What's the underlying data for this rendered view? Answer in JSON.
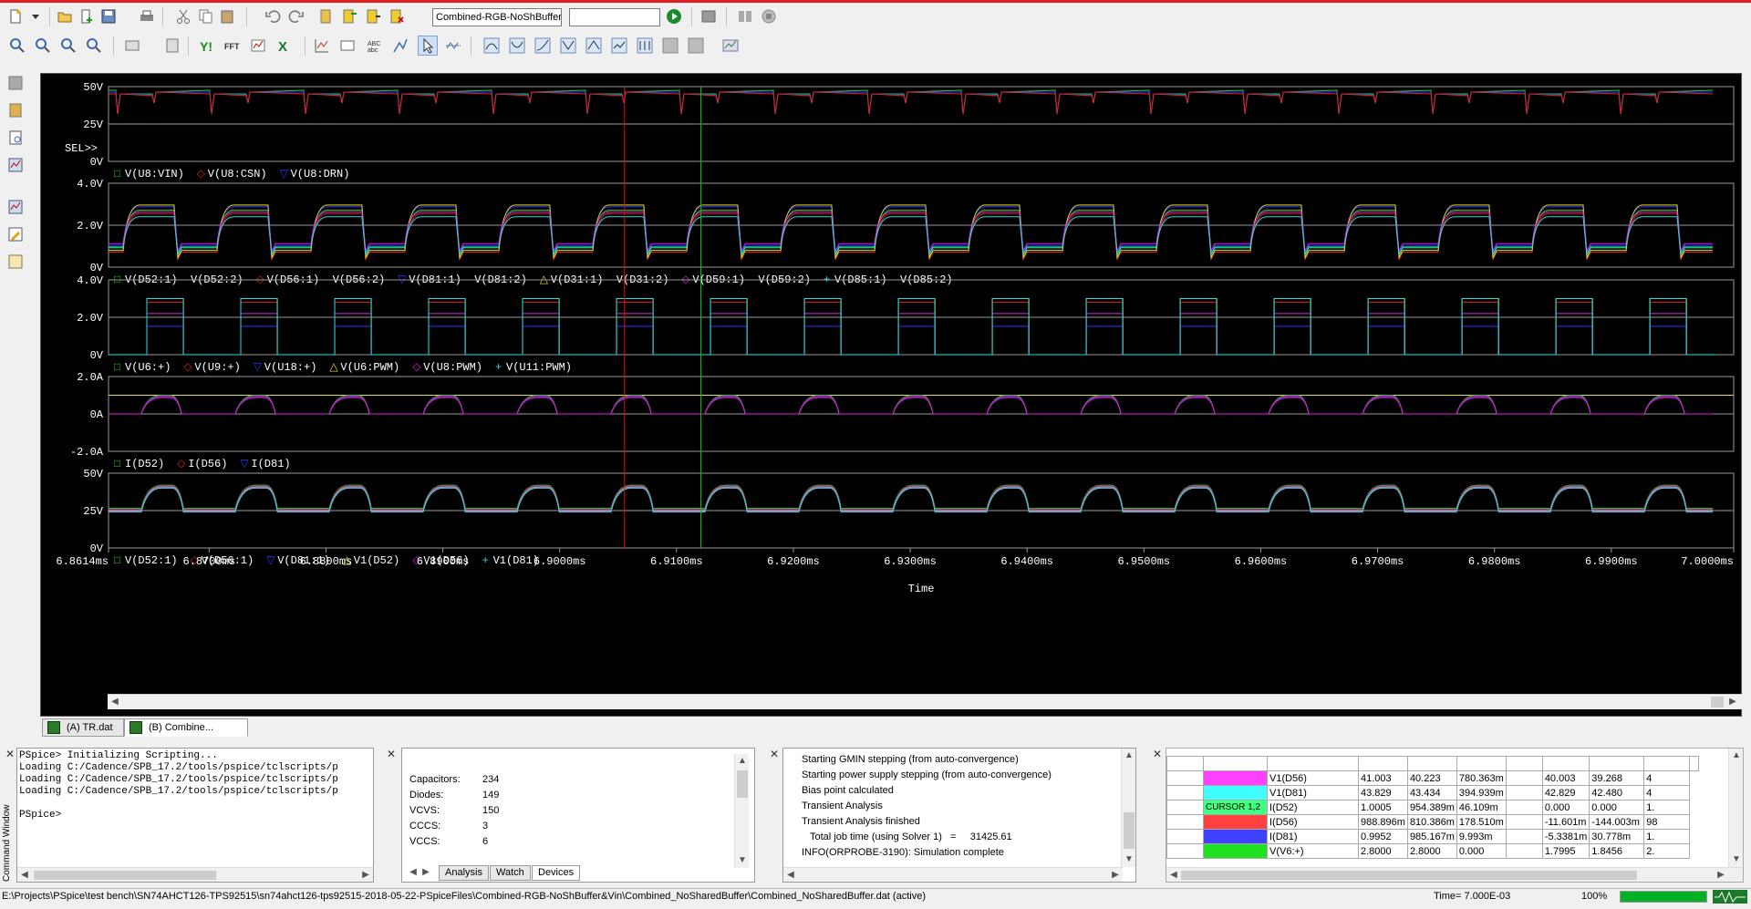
{
  "toolbar": {
    "profile_combo": "Combined-RGB-NoShBuffer",
    "search_combo": ""
  },
  "plot": {
    "background": "#000000",
    "cursor_colors": [
      "#e01010",
      "#10c010"
    ],
    "panels": [
      {
        "ylabels": [
          "50V",
          "25V",
          "0V"
        ],
        "sel": "SEL>>",
        "legend": [
          {
            "sym": "□",
            "color": "#20d020",
            "text": "V(U8:VIN)"
          },
          {
            "sym": "◇",
            "color": "#e02020",
            "text": "V(U8:CSN)"
          },
          {
            "sym": "▽",
            "color": "#3030ff",
            "text": "V(U8:DRN)"
          }
        ]
      },
      {
        "ylabels": [
          "4.0V",
          "2.0V",
          "0V"
        ],
        "legend": [
          {
            "sym": "□",
            "color": "#20d020",
            "text": "V(D52:1)- V(D52:2)"
          },
          {
            "sym": "◇",
            "color": "#e02020",
            "text": "V(D56:1)- V(D56:2)"
          },
          {
            "sym": "▽",
            "color": "#3030ff",
            "text": "V(D81:1)- V(D81:2)"
          },
          {
            "sym": "△",
            "color": "#e0e020",
            "text": "V(D31:1)- V(D31:2)"
          },
          {
            "sym": "◇",
            "color": "#e020e0",
            "text": "V(D59:1)- V(D59:2)"
          },
          {
            "sym": "+",
            "color": "#20e0e0",
            "text": "V(D85:1)- V(D85:2)"
          }
        ]
      },
      {
        "ylabels": [
          "4.0V",
          "2.0V",
          "0V"
        ],
        "legend": [
          {
            "sym": "□",
            "color": "#20d020",
            "text": "V(U6:+)"
          },
          {
            "sym": "◇",
            "color": "#e02020",
            "text": "V(U9:+)"
          },
          {
            "sym": "▽",
            "color": "#3030ff",
            "text": "V(U18:+)"
          },
          {
            "sym": "△",
            "color": "#e0e020",
            "text": "V(U6:PWM)"
          },
          {
            "sym": "◇",
            "color": "#e020e0",
            "text": "V(U8:PWM)"
          },
          {
            "sym": "+",
            "color": "#20e0e0",
            "text": "V(U11:PWM)"
          }
        ]
      },
      {
        "ylabels": [
          "2.0A",
          "0A",
          "-2.0A"
        ],
        "legend": [
          {
            "sym": "□",
            "color": "#20d020",
            "text": "I(D52)"
          },
          {
            "sym": "◇",
            "color": "#e02020",
            "text": "I(D56)"
          },
          {
            "sym": "▽",
            "color": "#3030ff",
            "text": "I(D81)"
          }
        ]
      },
      {
        "ylabels": [
          "50V",
          "25V",
          "0V"
        ],
        "legend": [
          {
            "sym": "□",
            "color": "#20d020",
            "text": "V(D52:1)"
          },
          {
            "sym": "◇",
            "color": "#e02020",
            "text": "V(D56:1)"
          },
          {
            "sym": "▽",
            "color": "#3030ff",
            "text": "V(D81:1)"
          },
          {
            "sym": "△",
            "color": "#e0e020",
            "text": "V1(D52)"
          },
          {
            "sym": "◇",
            "color": "#e020e0",
            "text": "V1(D56)"
          },
          {
            "sym": "+",
            "color": "#20e0e0",
            "text": "V1(D81)"
          }
        ]
      }
    ],
    "xticks": [
      "6.8614ms",
      "6.8700ms",
      "6.8800ms",
      "6.8900ms",
      "6.9000ms",
      "6.9100ms",
      "6.9200ms",
      "6.9300ms",
      "6.9400ms",
      "6.9500ms",
      "6.9600ms",
      "6.9700ms",
      "6.9800ms",
      "6.9900ms",
      "7.0000ms"
    ],
    "xlabel": "Time",
    "cursors": {
      "c1": "6.9064ms",
      "c2": "6.9142ms"
    }
  },
  "tabs": [
    {
      "label": "(A) TR.dat"
    },
    {
      "label": "(B) Combine..."
    }
  ],
  "command_window": {
    "title": "Command Window",
    "lines": [
      "PSpice> Initializing Scripting...",
      "Loading C:/Cadence/SPB_17.2/tools/pspice/tclscripts/p",
      "Loading C:/Cadence/SPB_17.2/tools/pspice/tclscripts/p",
      "Loading C:/Cadence/SPB_17.2/tools/pspice/tclscripts/p",
      "",
      "PSpice>"
    ]
  },
  "devices": {
    "rows": [
      {
        "k": "Capacitors:",
        "v": "234"
      },
      {
        "k": "Diodes:",
        "v": "149"
      },
      {
        "k": "VCVS:",
        "v": "150"
      },
      {
        "k": "CCCS:",
        "v": "3"
      },
      {
        "k": "VCCS:",
        "v": "6"
      }
    ],
    "subtabs": [
      "Analysis",
      "Watch",
      "Devices"
    ]
  },
  "messages": [
    "Starting GMIN stepping (from auto-convergence)",
    "Starting power supply stepping (from auto-convergence)",
    "Bias point calculated",
    "Transient Analysis",
    "Transient Analysis finished",
    "   Total job time (using Solver 1)   =     31425.61",
    "INFO(ORPROBE-3190): Simulation complete"
  ],
  "probe": {
    "rows": [
      {
        "color": "#ff40ff",
        "name": "V1(D56)",
        "c1": "41.003",
        "c2": "40.223",
        "dif": "780.363m",
        "mx": "",
        "a": "40.003",
        "b": "39.268",
        "c": "4"
      },
      {
        "color": "#40ffff",
        "name": "V1(D81)",
        "c1": "43.829",
        "c2": "43.434",
        "dif": "394.939m",
        "mx": "",
        "a": "42.829",
        "b": "42.480",
        "c": "4"
      },
      {
        "color": "#40ff80",
        "name": "I(D52)",
        "label": "CURSOR 1,2",
        "c1": "1.0005",
        "c2": "954.389m",
        "dif": "46.109m",
        "mx": "",
        "a": "0.000",
        "b": "0.000",
        "c": "1."
      },
      {
        "color": "#ff4040",
        "name": "I(D56)",
        "c1": "988.896m",
        "c2": "810.386m",
        "dif": "178.510m",
        "mx": "",
        "a": "-11.601m",
        "b": "-144.003m",
        "c": "98"
      },
      {
        "color": "#4040ff",
        "name": "I(D81)",
        "c1": "0.9952",
        "c2": "985.167m",
        "dif": "9.993m",
        "mx": "",
        "a": "-5.3381m",
        "b": "30.778m",
        "c": "1."
      },
      {
        "color": "#20e020",
        "name": "V(V6:+)",
        "c1": "2.8000",
        "c2": "2.8000",
        "dif": "0.000",
        "mx": "",
        "a": "1.7995",
        "b": "1.8456",
        "c": "2."
      }
    ]
  },
  "status": {
    "path": "E:\\Projects\\PSpice\\test bench\\SN74AHCT126-TPS92515\\sn74ahct126-tps92515-2018-05-22-PSpiceFiles\\Combined-RGB-NoShBuffer&Vin\\Combined_NoSharedBuffer\\Combined_NoSharedBuffer.dat (active)",
    "time": "Time= 7.000E-03",
    "zoom": "100%",
    "progress": 1.0
  }
}
